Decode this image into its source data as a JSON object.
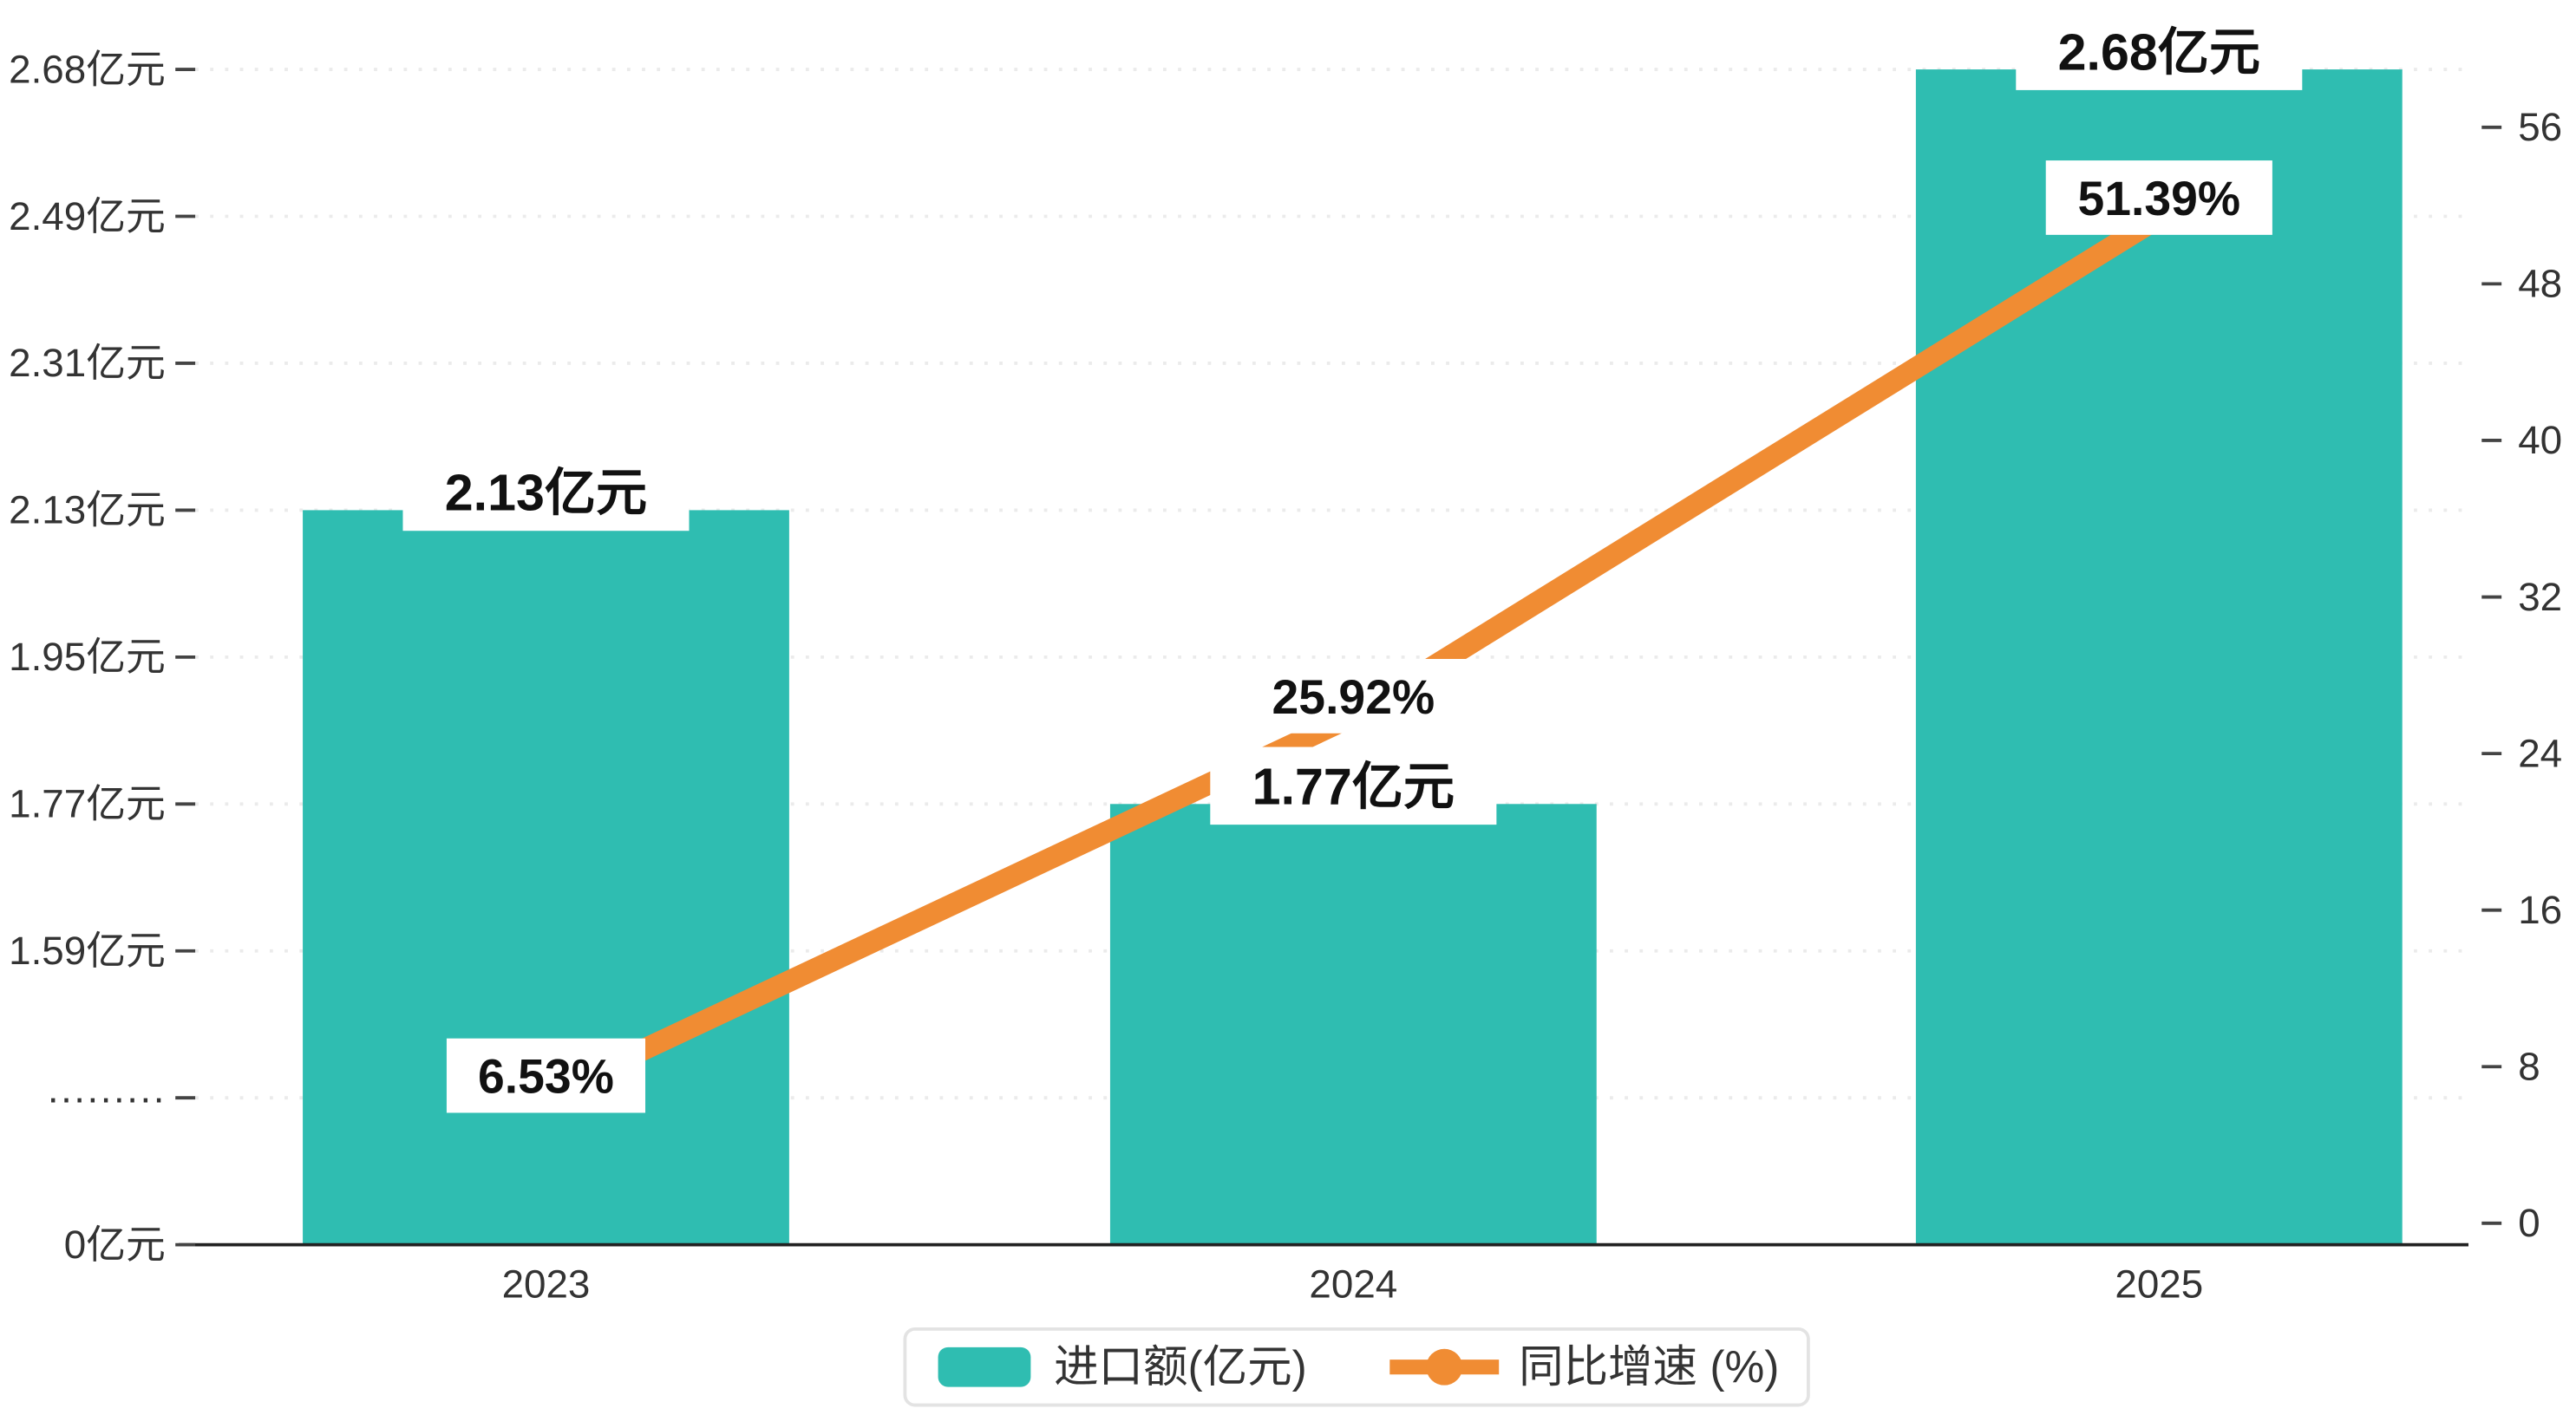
{
  "chart_data": {
    "type": "bar",
    "title": "",
    "categories": [
      "2023",
      "2024",
      "2025"
    ],
    "series": [
      {
        "name": "进口额(亿元)",
        "type": "bar",
        "values": [
          2.13,
          1.77,
          2.68
        ],
        "labels": [
          "2.13亿元",
          "1.77亿元",
          "2.68亿元"
        ],
        "color": "#2fbdb1"
      },
      {
        "name": "同比增速 (%)",
        "type": "line",
        "values": [
          6.53,
          25.92,
          51.39
        ],
        "labels": [
          "6.53%",
          "25.92%",
          "51.39%"
        ],
        "color": "#f08c33"
      }
    ],
    "left_axis": {
      "tick_labels": [
        "2.68亿元",
        "2.49亿元",
        "2.31亿元",
        "2.13亿元",
        "1.95亿元",
        "1.77亿元",
        "1.59亿元",
        "·········",
        "0亿元"
      ],
      "tick_values": [
        2.68,
        2.49,
        2.31,
        2.13,
        1.95,
        1.77,
        1.59,
        null,
        0
      ],
      "broken_axis": true
    },
    "right_axis": {
      "ticks": [
        56,
        48,
        40,
        32,
        24,
        16,
        8,
        0
      ],
      "min": 0,
      "max": 56
    },
    "legend": [
      {
        "label": "进口额(亿元)",
        "type": "bar",
        "color": "#2fbdb1"
      },
      {
        "label": "同比增速 (%)",
        "type": "line",
        "color": "#f08c33"
      }
    ],
    "grid": true,
    "legend_position": "bottom-center"
  },
  "colors": {
    "bar": "#2fbdb1",
    "line": "#f08c33",
    "grid": "#ebebeb",
    "axis": "#222222",
    "text": "#333333",
    "label_text": "#111111",
    "legend_border": "#e3e3e3",
    "background": "#ffffff"
  }
}
